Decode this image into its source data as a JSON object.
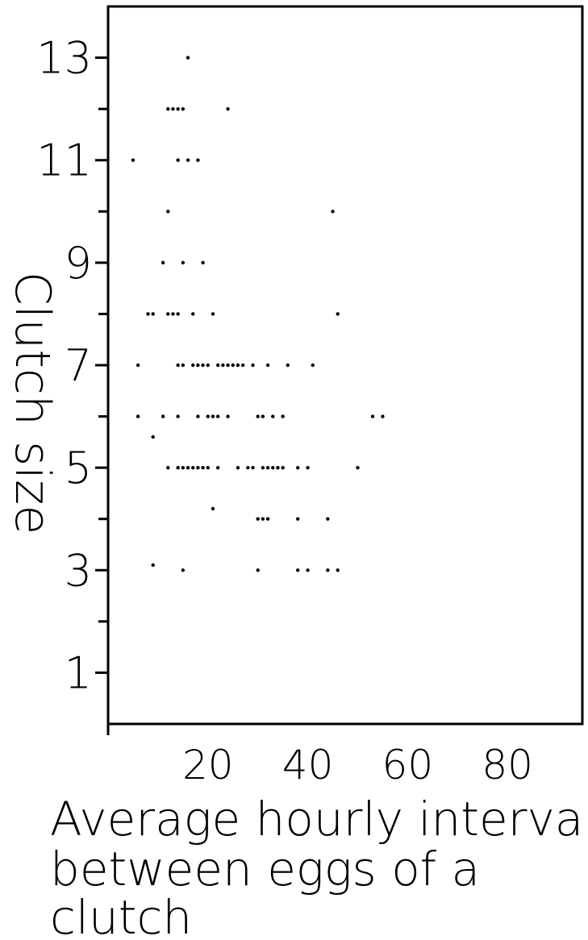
{
  "chart_data": {
    "type": "scatter",
    "ylabel": "Clutch size",
    "xlabel_lines": [
      "Average hourly interval",
      "between eggs of a",
      "clutch"
    ],
    "xlim": [
      0,
      95
    ],
    "ylim": [
      0,
      14
    ],
    "x_ticks": [
      20,
      40,
      60,
      80
    ],
    "x_tick_labels": [
      "20",
      "40",
      "60",
      "80"
    ],
    "y_major_ticks": [
      1,
      3,
      5,
      7,
      9,
      11,
      13
    ],
    "y_tick_labels": [
      "1",
      "3",
      "5",
      "7",
      "9",
      "11",
      "13"
    ],
    "y_minor_ticks": [
      2,
      4,
      6,
      8,
      10,
      12
    ],
    "grid": false,
    "marker_color": "#000000",
    "points": [
      [
        16,
        13
      ],
      [
        12,
        12
      ],
      [
        13,
        12
      ],
      [
        14,
        12
      ],
      [
        15,
        12
      ],
      [
        24,
        12
      ],
      [
        5,
        11
      ],
      [
        14,
        11
      ],
      [
        16,
        11
      ],
      [
        18,
        11
      ],
      [
        12,
        10
      ],
      [
        45,
        10
      ],
      [
        11,
        9
      ],
      [
        15,
        9
      ],
      [
        19,
        9
      ],
      [
        8,
        8
      ],
      [
        9,
        8
      ],
      [
        12,
        8
      ],
      [
        13,
        8
      ],
      [
        14,
        8
      ],
      [
        17,
        8
      ],
      [
        21,
        8
      ],
      [
        46,
        8
      ],
      [
        6,
        7
      ],
      [
        14,
        7
      ],
      [
        15,
        7
      ],
      [
        17,
        7
      ],
      [
        18,
        7
      ],
      [
        19,
        7
      ],
      [
        20,
        7
      ],
      [
        22,
        7
      ],
      [
        23,
        7
      ],
      [
        24,
        7
      ],
      [
        25,
        7
      ],
      [
        26,
        7
      ],
      [
        27,
        7
      ],
      [
        29,
        7
      ],
      [
        32,
        7
      ],
      [
        36,
        7
      ],
      [
        41,
        7
      ],
      [
        6,
        6
      ],
      [
        11,
        6
      ],
      [
        14,
        6
      ],
      [
        18,
        6
      ],
      [
        20,
        6
      ],
      [
        21,
        6
      ],
      [
        22,
        6
      ],
      [
        24,
        6
      ],
      [
        30,
        6
      ],
      [
        31,
        6
      ],
      [
        33,
        6
      ],
      [
        35,
        6
      ],
      [
        53,
        6
      ],
      [
        55,
        6
      ],
      [
        9,
        5.6
      ],
      [
        12,
        5
      ],
      [
        14,
        5
      ],
      [
        15,
        5
      ],
      [
        16,
        5
      ],
      [
        17,
        5
      ],
      [
        18,
        5
      ],
      [
        19,
        5
      ],
      [
        20,
        5
      ],
      [
        22,
        5
      ],
      [
        26,
        5
      ],
      [
        28,
        5
      ],
      [
        29,
        5
      ],
      [
        31,
        5
      ],
      [
        32,
        5
      ],
      [
        33,
        5
      ],
      [
        34,
        5
      ],
      [
        35,
        5
      ],
      [
        38,
        5
      ],
      [
        40,
        5
      ],
      [
        50,
        5
      ],
      [
        21,
        4.2
      ],
      [
        30,
        4
      ],
      [
        31,
        4
      ],
      [
        32,
        4
      ],
      [
        38,
        4
      ],
      [
        44,
        4
      ],
      [
        9,
        3.1
      ],
      [
        15,
        3
      ],
      [
        30,
        3
      ],
      [
        38,
        3
      ],
      [
        40,
        3
      ],
      [
        44,
        3
      ],
      [
        46,
        3
      ]
    ]
  }
}
